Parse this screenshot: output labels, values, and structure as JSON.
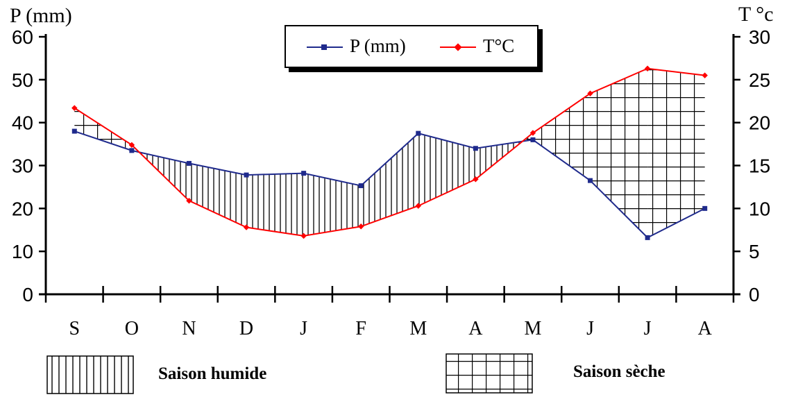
{
  "chart_data": {
    "type": "line",
    "categories": [
      "S",
      "O",
      "N",
      "D",
      "J",
      "F",
      "M",
      "A",
      "M",
      "J",
      "J",
      "A"
    ],
    "series": [
      {
        "name": "P (mm)",
        "axis": "left",
        "color": "#1f2a8c",
        "values": [
          38,
          33.5,
          30.5,
          27.8,
          28.2,
          25.3,
          37.5,
          34,
          36,
          26.5,
          13.2,
          20
        ]
      },
      {
        "name": "T°C",
        "axis": "right",
        "color": "#ff0000",
        "values": [
          21.7,
          17.4,
          10.9,
          7.8,
          6.8,
          7.9,
          10.3,
          13.4,
          18.8,
          23.4,
          26.3,
          25.5
        ]
      }
    ],
    "ylabel_left": "P (mm)",
    "ylabel_right": "T °c",
    "ylim_left": [
      0,
      60
    ],
    "ylim_right": [
      0,
      30
    ],
    "yticks_left": [
      "0",
      "10",
      "20",
      "30",
      "40",
      "50",
      "60"
    ],
    "yticks_right": [
      "0",
      "5",
      "10",
      "15",
      "20",
      "25",
      "30"
    ],
    "grid": false,
    "legend_position": "top-center",
    "fills": [
      {
        "name": "Saison humide",
        "pattern": "vertical-lines",
        "condition": "P above T"
      },
      {
        "name": "Saison sèche",
        "pattern": "grid",
        "condition": "T above P"
      }
    ]
  }
}
